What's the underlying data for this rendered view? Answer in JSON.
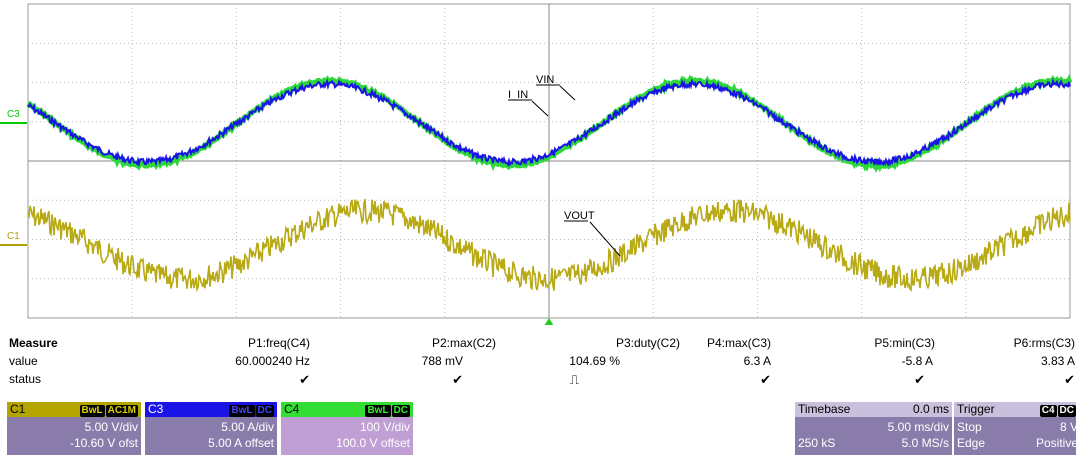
{
  "waveform": {
    "ground_labels": [
      {
        "label": "C3",
        "color": "#00cc00"
      },
      {
        "label": "C1",
        "color": "#b0a000"
      }
    ],
    "traces": [
      {
        "name": "VIN",
        "color": "#2ed83a"
      },
      {
        "name": "I_IN",
        "color": "#1a14e6"
      },
      {
        "name": "VOUT",
        "color": "#b8aa14"
      }
    ],
    "annotations": [
      "VIN",
      "I_IN",
      "VOUT"
    ],
    "grid": {
      "hdiv": 10,
      "vdiv": 8,
      "color": "#888888"
    },
    "trigger_marker_color": "#22cc22"
  },
  "measure": {
    "header": "Measure",
    "row_labels": [
      "value",
      "status"
    ],
    "params": [
      {
        "name": "P1:freq(C4)",
        "value": "60.000240 Hz",
        "status": "✔"
      },
      {
        "name": "P2:max(C2)",
        "value": "788 mV",
        "status": "✔"
      },
      {
        "name": "P3:duty(C2)",
        "value": "104.69 %",
        "status": "⎍"
      },
      {
        "name": "P4:max(C3)",
        "value": "6.3 A",
        "status": "✔"
      },
      {
        "name": "P5:min(C3)",
        "value": "-5.8 A",
        "status": "✔"
      },
      {
        "name": "P6:rms(C3)",
        "value": "3.83 A",
        "status": "✔"
      }
    ]
  },
  "channels": [
    {
      "id": "C1",
      "tags": [
        "BwL",
        "AC1M"
      ],
      "line1": "5.00 V/div",
      "line2": "-10.60 V ofst",
      "bg": "#8a7caa",
      "title_bg": "#b3a400",
      "title_color": "#000000"
    },
    {
      "id": "C3",
      "tags": [
        "BwL",
        "DC"
      ],
      "line1": "5.00 A/div",
      "line2": "5.00 A offset",
      "bg": "#8a7caa",
      "title_bg": "#1a14e6",
      "title_color": "#ffffff"
    },
    {
      "id": "C4",
      "tags": [
        "BwL",
        "DC"
      ],
      "line1": "100 V/div",
      "line2": "100.0 V offset",
      "bg": "#c0a0d4",
      "title_bg": "#33dd33",
      "title_color": "#000000"
    }
  ],
  "timebase": {
    "title": "Timebase",
    "delay": "0.0 ms",
    "div": "5.00 ms/div",
    "samples": "250 kS",
    "rate": "5.0 MS/s"
  },
  "trigger": {
    "title": "Trigger",
    "tag": "C4",
    "coupling": "DC",
    "mode": "Stop",
    "level": "8 V",
    "type": "Edge",
    "slope": "Positive"
  }
}
